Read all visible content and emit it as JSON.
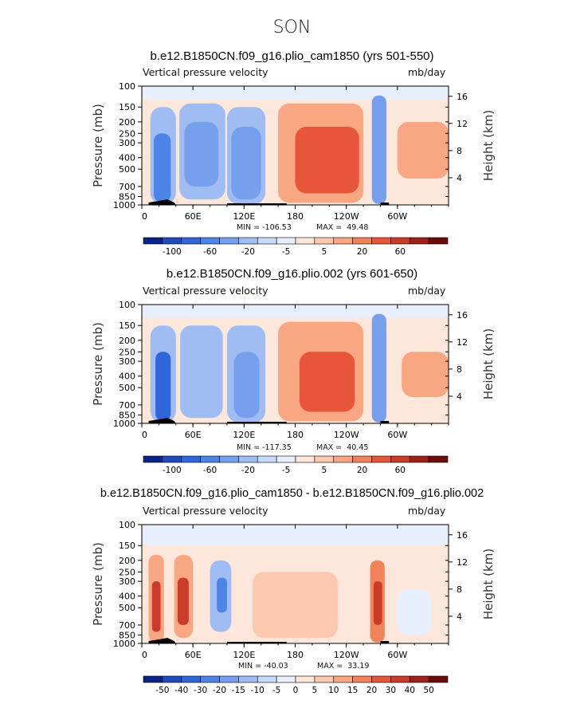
{
  "season": "SON",
  "colors": {
    "scale": [
      "#0a2485",
      "#1f4bbd",
      "#2f66d9",
      "#4d84e8",
      "#769fee",
      "#9fbdf3",
      "#c7daf8",
      "#e8effc",
      "#fde6da",
      "#fcc9b0",
      "#f9a783",
      "#f2825a",
      "#e8563a",
      "#cc3a28",
      "#9e2018",
      "#6b0c0c"
    ]
  },
  "chart_data": [
    {
      "type": "heatmap",
      "title": "b.e12.B1850CN.f09_g16.plio_cam1850 (yrs 501-550)",
      "subtitle_left": "Vertical pressure velocity",
      "subtitle_right": "mb/day",
      "ylabel": "Pressure (mb)",
      "ylabel_right": "Height (km)",
      "x_ticks": [
        "0",
        "60E",
        "120E",
        "180",
        "120W",
        "60W"
      ],
      "y_ticks": [
        "100",
        "150",
        "200",
        "250",
        "300",
        "400",
        "500",
        "700",
        "850",
        "1000"
      ],
      "y_ticks_right": [
        "16",
        "12",
        "8",
        "4"
      ],
      "min_label": "MIN = -106.53",
      "max_label": "MAX =  49.48",
      "colorbar_labels": [
        "-100",
        "-60",
        "-20",
        "-5",
        "5",
        "20",
        "60"
      ],
      "features": [
        {
          "lon_from": 0,
          "lon_to": 360,
          "p_from": 100,
          "p_to": 1000,
          "level": 8
        },
        {
          "lon_from": 0,
          "lon_to": 360,
          "p_from": 100,
          "p_to": 130,
          "level": 7
        },
        {
          "lon_from": 10,
          "lon_to": 40,
          "p_from": 150,
          "p_to": 980,
          "level": 5
        },
        {
          "lon_from": 14,
          "lon_to": 34,
          "p_from": 250,
          "p_to": 950,
          "level": 3
        },
        {
          "lon_from": 44,
          "lon_to": 98,
          "p_from": 140,
          "p_to": 900,
          "level": 5
        },
        {
          "lon_from": 50,
          "lon_to": 90,
          "p_from": 200,
          "p_to": 700,
          "level": 4
        },
        {
          "lon_from": 100,
          "lon_to": 145,
          "p_from": 150,
          "p_to": 980,
          "level": 5
        },
        {
          "lon_from": 105,
          "lon_to": 140,
          "p_from": 220,
          "p_to": 900,
          "level": 4
        },
        {
          "lon_from": 160,
          "lon_to": 260,
          "p_from": 140,
          "p_to": 960,
          "level": 10
        },
        {
          "lon_from": 180,
          "lon_to": 255,
          "p_from": 220,
          "p_to": 800,
          "level": 12
        },
        {
          "lon_from": 270,
          "lon_to": 287,
          "p_from": 120,
          "p_to": 980,
          "level": 4
        },
        {
          "lon_from": 300,
          "lon_to": 360,
          "p_from": 200,
          "p_to": 600,
          "level": 10
        }
      ]
    },
    {
      "type": "heatmap",
      "title": "b.e12.B1850CN.f09_g16.plio.002 (yrs 601-650)",
      "subtitle_left": "Vertical pressure velocity",
      "subtitle_right": "mb/day",
      "ylabel": "Pressure (mb)",
      "ylabel_right": "Height (km)",
      "x_ticks": [
        "0",
        "60E",
        "120E",
        "180",
        "120W",
        "60W"
      ],
      "y_ticks": [
        "100",
        "150",
        "200",
        "250",
        "300",
        "400",
        "500",
        "700",
        "850",
        "1000"
      ],
      "y_ticks_right": [
        "16",
        "12",
        "8",
        "4"
      ],
      "min_label": "MIN = -117.35",
      "max_label": "MAX =  40.45",
      "colorbar_labels": [
        "-100",
        "-60",
        "-20",
        "-5",
        "5",
        "20",
        "60"
      ],
      "features": [
        {
          "lon_from": 0,
          "lon_to": 360,
          "p_from": 100,
          "p_to": 1000,
          "level": 8
        },
        {
          "lon_from": 0,
          "lon_to": 360,
          "p_from": 100,
          "p_to": 130,
          "level": 7
        },
        {
          "lon_from": 10,
          "lon_to": 40,
          "p_from": 150,
          "p_to": 980,
          "level": 5
        },
        {
          "lon_from": 16,
          "lon_to": 34,
          "p_from": 250,
          "p_to": 950,
          "level": 2
        },
        {
          "lon_from": 45,
          "lon_to": 95,
          "p_from": 150,
          "p_to": 900,
          "level": 5
        },
        {
          "lon_from": 100,
          "lon_to": 145,
          "p_from": 150,
          "p_to": 980,
          "level": 5
        },
        {
          "lon_from": 108,
          "lon_to": 138,
          "p_from": 250,
          "p_to": 900,
          "level": 4
        },
        {
          "lon_from": 160,
          "lon_to": 260,
          "p_from": 140,
          "p_to": 960,
          "level": 10
        },
        {
          "lon_from": 185,
          "lon_to": 250,
          "p_from": 250,
          "p_to": 800,
          "level": 12
        },
        {
          "lon_from": 270,
          "lon_to": 287,
          "p_from": 120,
          "p_to": 980,
          "level": 4
        },
        {
          "lon_from": 305,
          "lon_to": 360,
          "p_from": 250,
          "p_to": 600,
          "level": 10
        }
      ]
    },
    {
      "type": "heatmap",
      "title": "b.e12.B1850CN.f09_g16.plio_cam1850 - b.e12.B1850CN.f09_g16.plio.002",
      "subtitle_left": "Vertical pressure velocity",
      "subtitle_right": "mb/day",
      "ylabel": "Pressure (mb)",
      "ylabel_right": "Height (km)",
      "x_ticks": [
        "0",
        "60E",
        "120E",
        "180",
        "120W",
        "60W"
      ],
      "y_ticks": [
        "100",
        "150",
        "200",
        "250",
        "300",
        "400",
        "500",
        "700",
        "850",
        "1000"
      ],
      "y_ticks_right": [
        "16",
        "12",
        "8",
        "4"
      ],
      "min_label": "MIN = -40.03",
      "max_label": "MAX =  33.19",
      "colorbar_labels": [
        "-50",
        "-40",
        "-30",
        "-20",
        "-15",
        "-10",
        "-5",
        "0",
        "5",
        "10",
        "15",
        "20",
        "30",
        "40",
        "50"
      ],
      "features": [
        {
          "lon_from": 0,
          "lon_to": 360,
          "p_from": 100,
          "p_to": 1000,
          "level": 8
        },
        {
          "lon_from": 0,
          "lon_to": 360,
          "p_from": 100,
          "p_to": 150,
          "level": 7
        },
        {
          "lon_from": 8,
          "lon_to": 26,
          "p_from": 180,
          "p_to": 980,
          "level": 10
        },
        {
          "lon_from": 12,
          "lon_to": 22,
          "p_from": 300,
          "p_to": 800,
          "level": 13
        },
        {
          "lon_from": 38,
          "lon_to": 60,
          "p_from": 180,
          "p_to": 900,
          "level": 10
        },
        {
          "lon_from": 42,
          "lon_to": 55,
          "p_from": 280,
          "p_to": 700,
          "level": 13
        },
        {
          "lon_from": 80,
          "lon_to": 105,
          "p_from": 200,
          "p_to": 800,
          "level": 5
        },
        {
          "lon_from": 88,
          "lon_to": 100,
          "p_from": 280,
          "p_to": 550,
          "level": 3
        },
        {
          "lon_from": 130,
          "lon_to": 230,
          "p_from": 250,
          "p_to": 900,
          "level": 9
        },
        {
          "lon_from": 268,
          "lon_to": 285,
          "p_from": 200,
          "p_to": 980,
          "level": 11
        },
        {
          "lon_from": 272,
          "lon_to": 282,
          "p_from": 300,
          "p_to": 700,
          "level": 13
        },
        {
          "lon_from": 300,
          "lon_to": 340,
          "p_from": 350,
          "p_to": 850,
          "level": 7
        }
      ]
    }
  ]
}
